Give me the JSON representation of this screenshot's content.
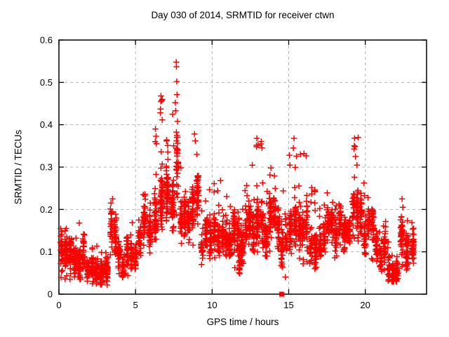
{
  "chart_data": {
    "type": "scatter",
    "title": "Day 030 of 2014, SRMTID for receiver ctwn",
    "xlabel": "GPS time / hours",
    "ylabel": "SRMTID / TECUs",
    "xlim": [
      0,
      24
    ],
    "ylim": [
      0,
      0.6
    ],
    "xticks": [
      0,
      5,
      10,
      15,
      20
    ],
    "yticks": [
      0,
      0.1,
      0.2,
      0.3,
      0.4,
      0.5,
      0.6
    ],
    "xtick_labels": [
      "0",
      "5",
      "10",
      "15",
      "20"
    ],
    "ytick_labels": [
      "0",
      "0.1",
      "0.2",
      "0.3",
      "0.4",
      "0.5",
      "0.6"
    ],
    "grid": true,
    "legend": "none",
    "marker": "plus",
    "series_name": "SRMTID",
    "notable_points": [
      [
        7.66,
        0.548
      ],
      [
        7.67,
        0.537
      ],
      [
        7.69,
        0.502
      ],
      [
        7.71,
        0.471
      ],
      [
        7.6,
        0.452
      ],
      [
        7.62,
        0.433
      ],
      [
        6.66,
        0.468
      ],
      [
        6.65,
        0.455
      ],
      [
        6.63,
        0.437
      ],
      [
        6.62,
        0.428
      ],
      [
        6.3,
        0.39
      ],
      [
        6.34,
        0.373
      ],
      [
        8.85,
        0.378
      ],
      [
        8.9,
        0.362
      ],
      [
        9.0,
        0.33
      ],
      [
        12.92,
        0.368
      ],
      [
        13.0,
        0.352
      ],
      [
        15.35,
        0.368
      ],
      [
        15.3,
        0.345
      ],
      [
        16.0,
        0.332
      ],
      [
        19.3,
        0.368
      ],
      [
        19.33,
        0.348
      ],
      [
        19.36,
        0.325
      ],
      [
        3.5,
        0.225
      ],
      [
        10.55,
        0.268
      ],
      [
        22.4,
        0.225
      ],
      [
        22.45,
        0.205
      ]
    ],
    "special_square_point": [
      14.54,
      0.0
    ],
    "density_segments_format": "[x_start, x_end, count, y_min, y_max, y_center, y_spread]",
    "density_segments": [
      [
        0.02,
        0.6,
        70,
        0.035,
        0.165,
        0.085,
        0.05
      ],
      [
        0.6,
        1.2,
        80,
        0.03,
        0.135,
        0.07,
        0.045
      ],
      [
        1.2,
        1.75,
        70,
        0.035,
        0.19,
        0.095,
        0.055
      ],
      [
        1.75,
        2.6,
        110,
        0.025,
        0.115,
        0.062,
        0.04
      ],
      [
        2.6,
        3.3,
        90,
        0.02,
        0.1,
        0.055,
        0.035
      ],
      [
        3.3,
        3.8,
        55,
        0.07,
        0.225,
        0.13,
        0.06
      ],
      [
        3.8,
        4.6,
        80,
        0.04,
        0.135,
        0.082,
        0.04
      ],
      [
        4.6,
        5.4,
        75,
        0.06,
        0.175,
        0.112,
        0.045
      ],
      [
        5.4,
        6.1,
        80,
        0.085,
        0.245,
        0.15,
        0.055
      ],
      [
        6.1,
        6.5,
        45,
        0.13,
        0.395,
        0.22,
        0.08
      ],
      [
        6.5,
        6.9,
        55,
        0.15,
        0.47,
        0.26,
        0.09
      ],
      [
        6.9,
        7.6,
        95,
        0.15,
        0.43,
        0.255,
        0.08
      ],
      [
        7.6,
        7.85,
        35,
        0.18,
        0.55,
        0.3,
        0.1
      ],
      [
        7.85,
        8.6,
        95,
        0.12,
        0.375,
        0.215,
        0.07
      ],
      [
        8.6,
        9.2,
        70,
        0.1,
        0.38,
        0.2,
        0.07
      ],
      [
        9.2,
        10.3,
        110,
        0.07,
        0.265,
        0.15,
        0.055
      ],
      [
        10.3,
        11.3,
        120,
        0.09,
        0.245,
        0.145,
        0.045
      ],
      [
        11.3,
        12.1,
        100,
        0.05,
        0.225,
        0.13,
        0.05
      ],
      [
        11.68,
        11.92,
        15,
        0.03,
        0.12,
        0.07,
        0.035
      ],
      [
        12.1,
        12.8,
        90,
        0.1,
        0.315,
        0.17,
        0.055
      ],
      [
        12.8,
        13.4,
        80,
        0.1,
        0.37,
        0.19,
        0.065
      ],
      [
        13.4,
        14.2,
        100,
        0.09,
        0.305,
        0.16,
        0.055
      ],
      [
        14.2,
        14.95,
        80,
        0.03,
        0.255,
        0.13,
        0.055
      ],
      [
        14.95,
        15.6,
        80,
        0.08,
        0.37,
        0.175,
        0.06
      ],
      [
        15.6,
        16.3,
        85,
        0.07,
        0.335,
        0.16,
        0.06
      ],
      [
        16.3,
        17.2,
        100,
        0.06,
        0.255,
        0.13,
        0.05
      ],
      [
        17.2,
        18.2,
        110,
        0.08,
        0.255,
        0.148,
        0.05
      ],
      [
        18.2,
        19.1,
        110,
        0.08,
        0.275,
        0.158,
        0.05
      ],
      [
        19.1,
        19.6,
        60,
        0.12,
        0.37,
        0.2,
        0.065
      ],
      [
        19.6,
        20.6,
        110,
        0.08,
        0.27,
        0.158,
        0.05
      ],
      [
        20.6,
        21.4,
        90,
        0.04,
        0.185,
        0.1,
        0.045
      ],
      [
        21.4,
        22.2,
        90,
        0.03,
        0.135,
        0.072,
        0.04
      ],
      [
        22.2,
        22.9,
        80,
        0.05,
        0.205,
        0.112,
        0.05
      ],
      [
        22.9,
        23.3,
        40,
        0.06,
        0.21,
        0.12,
        0.05
      ]
    ]
  },
  "style": {
    "marker_color": "#ff0000",
    "grid_color": "#b4b4b4",
    "border_color": "#000000",
    "text_color": "#000000",
    "background": "#ffffff"
  }
}
